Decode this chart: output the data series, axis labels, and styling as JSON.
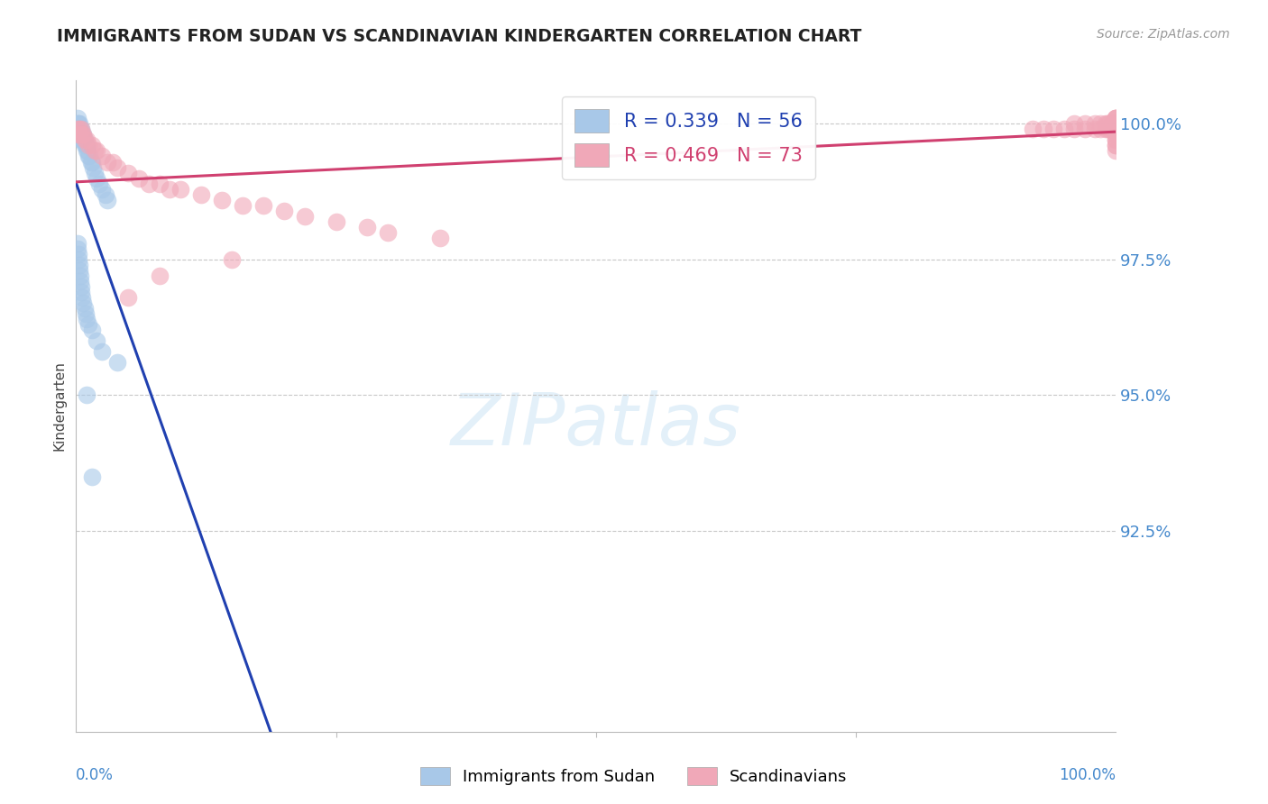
{
  "title": "IMMIGRANTS FROM SUDAN VS SCANDINAVIAN KINDERGARTEN CORRELATION CHART",
  "source": "Source: ZipAtlas.com",
  "ylabel": "Kindergarten",
  "legend_label1": "Immigrants from Sudan",
  "legend_label2": "Scandinavians",
  "r1": 0.339,
  "n1": 56,
  "r2": 0.469,
  "n2": 73,
  "color1": "#a8c8e8",
  "color2": "#f0a8b8",
  "line_color1": "#2040b0",
  "line_color2": "#d04070",
  "background_color": "#ffffff",
  "grid_color": "#c8c8c8",
  "title_color": "#222222",
  "source_color": "#999999",
  "tick_color": "#4488cc",
  "ytick_labels": [
    "92.5%",
    "95.0%",
    "97.5%",
    "100.0%"
  ],
  "ytick_values": [
    0.925,
    0.95,
    0.975,
    1.0
  ],
  "xlim": [
    0.0,
    1.0
  ],
  "ylim": [
    0.888,
    1.008
  ],
  "figsize": [
    14.06,
    8.92
  ],
  "dpi": 100,
  "blue_x": [
    0.001,
    0.001,
    0.002,
    0.002,
    0.002,
    0.003,
    0.003,
    0.003,
    0.004,
    0.004,
    0.005,
    0.005,
    0.005,
    0.006,
    0.006,
    0.007,
    0.007,
    0.008,
    0.008,
    0.009,
    0.01,
    0.01,
    0.011,
    0.012,
    0.013,
    0.014,
    0.015,
    0.016,
    0.018,
    0.02,
    0.022,
    0.025,
    0.028,
    0.03,
    0.001,
    0.001,
    0.002,
    0.002,
    0.003,
    0.003,
    0.004,
    0.004,
    0.005,
    0.005,
    0.006,
    0.007,
    0.008,
    0.009,
    0.01,
    0.012,
    0.015,
    0.02,
    0.025,
    0.04,
    0.01,
    0.015
  ],
  "blue_y": [
    1.001,
    1.0,
    1.0,
    0.999,
    0.998,
    1.0,
    0.999,
    0.998,
    0.999,
    0.998,
    0.999,
    0.998,
    0.997,
    0.998,
    0.997,
    0.998,
    0.997,
    0.997,
    0.996,
    0.996,
    0.996,
    0.995,
    0.995,
    0.994,
    0.994,
    0.993,
    0.993,
    0.992,
    0.991,
    0.99,
    0.989,
    0.988,
    0.987,
    0.986,
    0.978,
    0.977,
    0.976,
    0.975,
    0.974,
    0.973,
    0.972,
    0.971,
    0.97,
    0.969,
    0.968,
    0.967,
    0.966,
    0.965,
    0.964,
    0.963,
    0.962,
    0.96,
    0.958,
    0.956,
    0.95,
    0.935
  ],
  "pink_x": [
    0.001,
    0.002,
    0.003,
    0.004,
    0.005,
    0.006,
    0.007,
    0.008,
    0.01,
    0.012,
    0.015,
    0.018,
    0.02,
    0.025,
    0.03,
    0.035,
    0.04,
    0.05,
    0.06,
    0.07,
    0.08,
    0.09,
    0.1,
    0.12,
    0.14,
    0.16,
    0.18,
    0.2,
    0.22,
    0.25,
    0.28,
    0.3,
    0.35,
    0.15,
    0.08,
    0.05,
    0.92,
    0.93,
    0.94,
    0.95,
    0.96,
    0.96,
    0.97,
    0.97,
    0.98,
    0.98,
    0.985,
    0.985,
    0.99,
    0.99,
    0.992,
    0.992,
    0.994,
    0.994,
    0.996,
    0.996,
    0.998,
    0.998,
    0.999,
    0.999,
    1.0,
    1.0,
    1.0,
    1.0,
    1.0,
    1.0,
    1.0,
    1.0,
    1.0,
    1.0,
    1.0,
    1.0,
    1.0
  ],
  "pink_y": [
    0.999,
    0.998,
    0.999,
    0.998,
    0.999,
    0.998,
    0.998,
    0.997,
    0.997,
    0.996,
    0.996,
    0.995,
    0.995,
    0.994,
    0.993,
    0.993,
    0.992,
    0.991,
    0.99,
    0.989,
    0.989,
    0.988,
    0.988,
    0.987,
    0.986,
    0.985,
    0.985,
    0.984,
    0.983,
    0.982,
    0.981,
    0.98,
    0.979,
    0.975,
    0.972,
    0.968,
    0.999,
    0.999,
    0.999,
    0.999,
    0.999,
    1.0,
    0.999,
    1.0,
    0.999,
    1.0,
    0.999,
    1.0,
    0.999,
    1.0,
    0.999,
    1.0,
    0.999,
    1.0,
    0.999,
    1.0,
    0.999,
    1.0,
    0.999,
    1.0,
    0.999,
    1.0,
    1.001,
    1.001,
    1.001,
    1.001,
    0.998,
    0.998,
    0.997,
    0.997,
    0.996,
    0.996,
    0.995
  ]
}
